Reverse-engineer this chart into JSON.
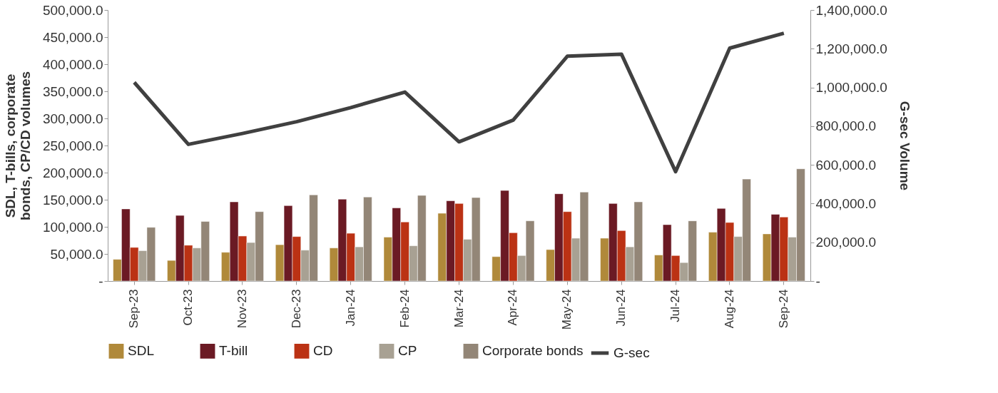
{
  "chart_data": {
    "type": "bar",
    "ylabel": "SDL, T-bills, corporate bonds, CP/CD volumes",
    "y2label": "G-sec Volume",
    "categories": [
      "Sep-23",
      "Oct-23",
      "Nov-23",
      "Dec-23",
      "Jan-24",
      "Feb-24",
      "Mar-24",
      "Apr-24",
      "May-24",
      "Jun-24",
      "Jul-24",
      "Aug-24",
      "Sep-24"
    ],
    "series": [
      {
        "name": "SDL",
        "color": "#b0893a",
        "values": [
          40000,
          38000,
          53000,
          67000,
          61000,
          81000,
          125000,
          45000,
          58000,
          79000,
          48000,
          90000,
          87000
        ]
      },
      {
        "name": "T-bill",
        "color": "#6b1a24",
        "values": [
          133000,
          121000,
          146000,
          139000,
          151000,
          135000,
          148000,
          167000,
          161000,
          143000,
          104000,
          134000,
          123000
        ]
      },
      {
        "name": "CD",
        "color": "#bb3214",
        "values": [
          62000,
          66000,
          83000,
          82000,
          88000,
          109000,
          143000,
          89000,
          128000,
          93000,
          47000,
          108000,
          118000
        ]
      },
      {
        "name": "CP",
        "color": "#a8a193",
        "values": [
          56000,
          61000,
          71000,
          57000,
          63000,
          65000,
          77000,
          47000,
          79000,
          63000,
          34000,
          82000,
          81000
        ]
      },
      {
        "name": "Corporate bonds",
        "color": "#938677",
        "values": [
          99000,
          110000,
          128000,
          159000,
          155000,
          158000,
          154000,
          111000,
          164000,
          146000,
          111000,
          188000,
          207000
        ]
      },
      {
        "name": "G-sec",
        "type": "line",
        "axis": "y2",
        "line_style": "solid",
        "color": "#404040",
        "values": [
          1026000,
          706000,
          762000,
          823000,
          896000,
          976000,
          719000,
          831000,
          1161000,
          1172000,
          565000,
          1203000,
          1280000
        ]
      }
    ],
    "ylim": [
      0,
      500000
    ],
    "yticks": [
      {
        "value": 0,
        "label": "-"
      },
      {
        "value": 50000,
        "label": "50,000.0"
      },
      {
        "value": 100000,
        "label": "100,000.0"
      },
      {
        "value": 150000,
        "label": "150,000.0"
      },
      {
        "value": 200000,
        "label": "200,000.0"
      },
      {
        "value": 250000,
        "label": "250,000.0"
      },
      {
        "value": 300000,
        "label": "300,000.0"
      },
      {
        "value": 350000,
        "label": "350,000.0"
      },
      {
        "value": 400000,
        "label": "400,000.0"
      },
      {
        "value": 450000,
        "label": "450,000.0"
      },
      {
        "value": 500000,
        "label": "500,000.0"
      }
    ],
    "y2lim": [
      0,
      1400000
    ],
    "y2ticks": [
      {
        "value": 0,
        "label": "-"
      },
      {
        "value": 200000,
        "label": "200,000.0"
      },
      {
        "value": 400000,
        "label": "400,000.0"
      },
      {
        "value": 600000,
        "label": "600,000.0"
      },
      {
        "value": 800000,
        "label": "800,000.0"
      },
      {
        "value": 1000000,
        "label": "1,000,000.0"
      },
      {
        "value": 1200000,
        "label": "1,200,000.0"
      },
      {
        "value": 1400000,
        "label": "1,400,000.0"
      }
    ],
    "grid": false,
    "legend": "bottom"
  }
}
